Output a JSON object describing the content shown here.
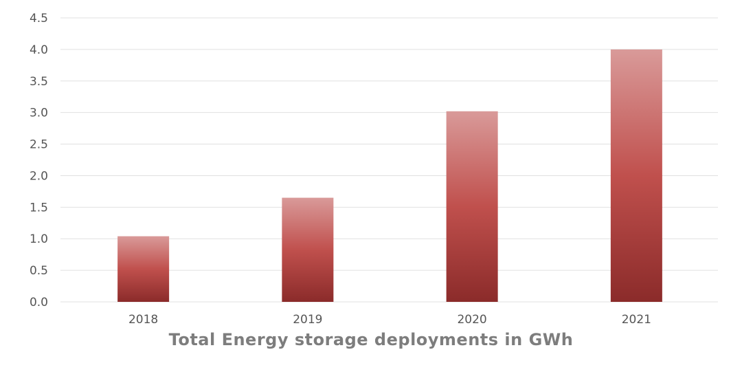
{
  "chart_data": {
    "type": "bar",
    "categories": [
      "2018",
      "2019",
      "2020",
      "2021"
    ],
    "values": [
      1.04,
      1.65,
      3.02,
      4.0
    ],
    "title": "",
    "xlabel": "Total Energy storage deployments in GWh",
    "ylabel": "",
    "ylim": [
      0,
      4.5
    ],
    "yticks": [
      "0.0",
      "0.5",
      "1.0",
      "1.5",
      "2.0",
      "2.5",
      "3.0",
      "3.5",
      "4.0",
      "4.5"
    ],
    "grid": true,
    "legend": "none",
    "colors": {
      "bar_top": "#d99a99",
      "bar_mid": "#c0504d",
      "bar_bottom": "#8b2b2a",
      "grid": "#e0e0e0",
      "tick_text": "#555555",
      "axis_label": "#7d7d7d"
    }
  }
}
